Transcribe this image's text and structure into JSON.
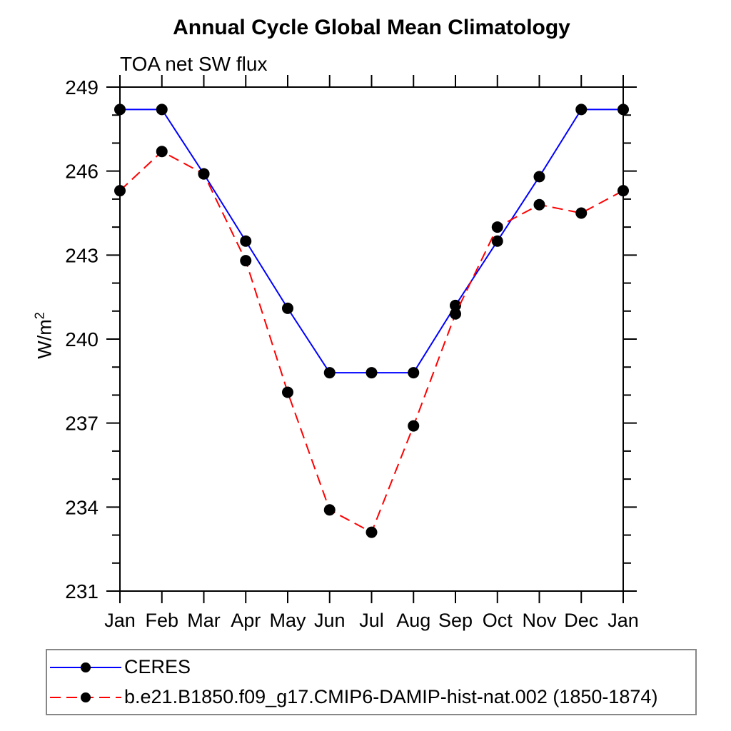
{
  "header": {
    "title": "Annual Cycle Global Mean Climatology",
    "subtitle": "TOA net SW flux"
  },
  "y_axis_label": {
    "base": "W/m",
    "exp": "2"
  },
  "legend": {
    "position": "bottom",
    "border_color": "#878787",
    "marker_color": "#000000",
    "entries": [
      {
        "label": "CERES",
        "color": "#0000ff",
        "line_style": "solid"
      },
      {
        "label": "b.e21.B1850.f09_g17.CMIP6-DAMIP-hist-nat.002 (1850-1874)",
        "color": "#ff0000",
        "line_style": "dashed"
      }
    ]
  },
  "chart_data": {
    "type": "line",
    "title": "Annual Cycle Global Mean Climatology",
    "subtitle": "TOA net SW flux",
    "xlabel": "",
    "ylabel": "W/m²",
    "categories": [
      "Jan",
      "Feb",
      "Mar",
      "Apr",
      "May",
      "Jun",
      "Jul",
      "Aug",
      "Sep",
      "Oct",
      "Nov",
      "Dec",
      "Jan"
    ],
    "series": [
      {
        "name": "CERES",
        "color": "#0000ff",
        "line_style": "solid",
        "marker": "filled-circle",
        "marker_color": "#000000",
        "values": [
          248.2,
          248.2,
          245.9,
          243.5,
          241.1,
          238.8,
          238.8,
          238.8,
          241.2,
          243.5,
          245.8,
          248.2,
          248.2
        ]
      },
      {
        "name": "b.e21.B1850.f09_g17.CMIP6-DAMIP-hist-nat.002 (1850-1874)",
        "color": "#ff0000",
        "line_style": "dashed",
        "marker": "filled-circle",
        "marker_color": "#000000",
        "values": [
          245.3,
          246.7,
          245.9,
          242.8,
          238.1,
          233.9,
          233.1,
          236.9,
          240.9,
          244.0,
          244.8,
          244.5,
          245.3
        ]
      }
    ],
    "ylim": [
      231,
      249
    ],
    "yticks_major": [
      231,
      234,
      237,
      240,
      243,
      246,
      249
    ],
    "ytick_minor_step": 1,
    "grid": false,
    "axis_color": "#000000",
    "legend_position": "bottom"
  }
}
